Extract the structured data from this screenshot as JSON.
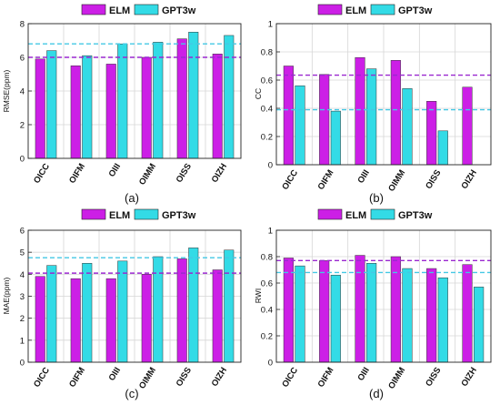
{
  "colors": {
    "elm": "#cc1fe6",
    "gpt": "#33dbe6",
    "elm_dash": "#9a28d0",
    "gpt_dash": "#44c8e4"
  },
  "chart_data": [
    {
      "type": "bar",
      "panel_label": "(a)",
      "categories": [
        "OICC",
        "OIFM",
        "OIII",
        "OIMM",
        "OISS",
        "OIZH"
      ],
      "series": [
        {
          "name": "ELM",
          "values": [
            5.9,
            5.5,
            5.6,
            6.0,
            7.1,
            6.2
          ]
        },
        {
          "name": "GPT3w",
          "values": [
            6.4,
            6.1,
            6.8,
            6.9,
            7.5,
            7.3
          ]
        }
      ],
      "reference_lines": [
        {
          "series": "ELM",
          "value": 6.0
        },
        {
          "series": "GPT3w",
          "value": 6.8
        }
      ],
      "ylabel": "RMSE(ppm)",
      "ylim": [
        0,
        8
      ],
      "yticks": [
        "0",
        "2",
        "4",
        "6",
        "8"
      ],
      "legend_position": "top",
      "grid": true
    },
    {
      "type": "bar",
      "panel_label": "(b)",
      "categories": [
        "OICC",
        "OIFM",
        "OIII",
        "OIMM",
        "OISS",
        "OIZH"
      ],
      "series": [
        {
          "name": "ELM",
          "values": [
            0.7,
            0.64,
            0.76,
            0.74,
            0.45,
            0.55
          ]
        },
        {
          "name": "GPT3w",
          "values": [
            0.56,
            0.38,
            0.68,
            0.54,
            0.24,
            0.0
          ]
        }
      ],
      "reference_lines": [
        {
          "series": "ELM",
          "value": 0.635
        },
        {
          "series": "GPT3w",
          "value": 0.39
        }
      ],
      "ylabel": "CC",
      "ylim": [
        0,
        1
      ],
      "yticks": [
        "0",
        "0.2",
        "0.4",
        "0.6",
        "0.8",
        "1"
      ],
      "legend_position": "top",
      "grid": true
    },
    {
      "type": "bar",
      "panel_label": "(c)",
      "categories": [
        "OICC",
        "OIFM",
        "OIII",
        "OIMM",
        "OISS",
        "OIZH"
      ],
      "series": [
        {
          "name": "ELM",
          "values": [
            3.9,
            3.8,
            3.8,
            4.0,
            4.7,
            4.2
          ]
        },
        {
          "name": "GPT3w",
          "values": [
            4.4,
            4.5,
            4.6,
            4.8,
            5.2,
            5.1
          ]
        }
      ],
      "reference_lines": [
        {
          "series": "ELM",
          "value": 4.05
        },
        {
          "series": "GPT3w",
          "value": 4.75
        }
      ],
      "ylabel": "MAE(ppm)",
      "ylim": [
        0,
        6
      ],
      "yticks": [
        "0",
        "1",
        "2",
        "3",
        "4",
        "5",
        "6"
      ],
      "legend_position": "top",
      "grid": true
    },
    {
      "type": "bar",
      "panel_label": "(d)",
      "categories": [
        "OICC",
        "OIFM",
        "OIII",
        "OIMM",
        "OISS",
        "OIZH"
      ],
      "series": [
        {
          "name": "ELM",
          "values": [
            0.79,
            0.77,
            0.81,
            0.8,
            0.71,
            0.74
          ]
        },
        {
          "name": "GPT3w",
          "values": [
            0.73,
            0.66,
            0.75,
            0.71,
            0.64,
            0.57
          ]
        }
      ],
      "reference_lines": [
        {
          "series": "ELM",
          "value": 0.77
        },
        {
          "series": "GPT3w",
          "value": 0.68
        }
      ],
      "ylabel": "RWI",
      "ylim": [
        0,
        1
      ],
      "yticks": [
        "0",
        "0.2",
        "0.4",
        "0.6",
        "0.8",
        "1"
      ],
      "legend_position": "top",
      "grid": true
    }
  ]
}
